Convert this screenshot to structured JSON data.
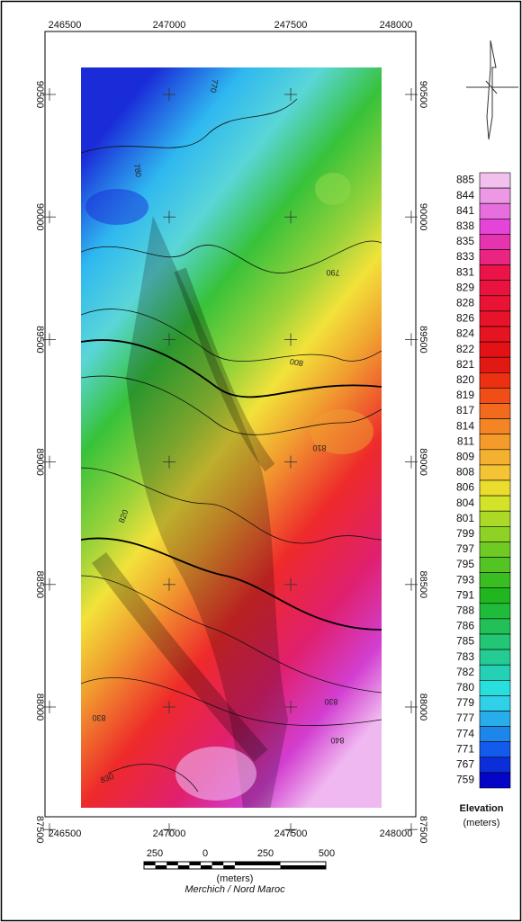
{
  "map": {
    "x_ticks": [
      "246500",
      "247000",
      "247500",
      "248000"
    ],
    "y_ticks": [
      "90500",
      "90000",
      "89500",
      "89000",
      "88500",
      "88000",
      "87500"
    ],
    "contour_labels": [
      "770",
      "780",
      "790",
      "800",
      "810",
      "820",
      "830",
      "830",
      "840",
      "830"
    ],
    "legend": {
      "title": "Elevation",
      "unit": "(meters)",
      "levels": [
        "885",
        "844",
        "841",
        "838",
        "835",
        "833",
        "831",
        "829",
        "828",
        "826",
        "824",
        "822",
        "821",
        "820",
        "819",
        "817",
        "814",
        "811",
        "809",
        "808",
        "806",
        "804",
        "801",
        "799",
        "797",
        "795",
        "793",
        "791",
        "788",
        "786",
        "785",
        "783",
        "782",
        "780",
        "779",
        "777",
        "774",
        "771",
        "767",
        "759"
      ]
    },
    "scale_bar": {
      "labels": [
        "250",
        "0",
        "250",
        "500"
      ],
      "unit": "(meters)",
      "datum": "Merchich / Nord Maroc"
    }
  }
}
